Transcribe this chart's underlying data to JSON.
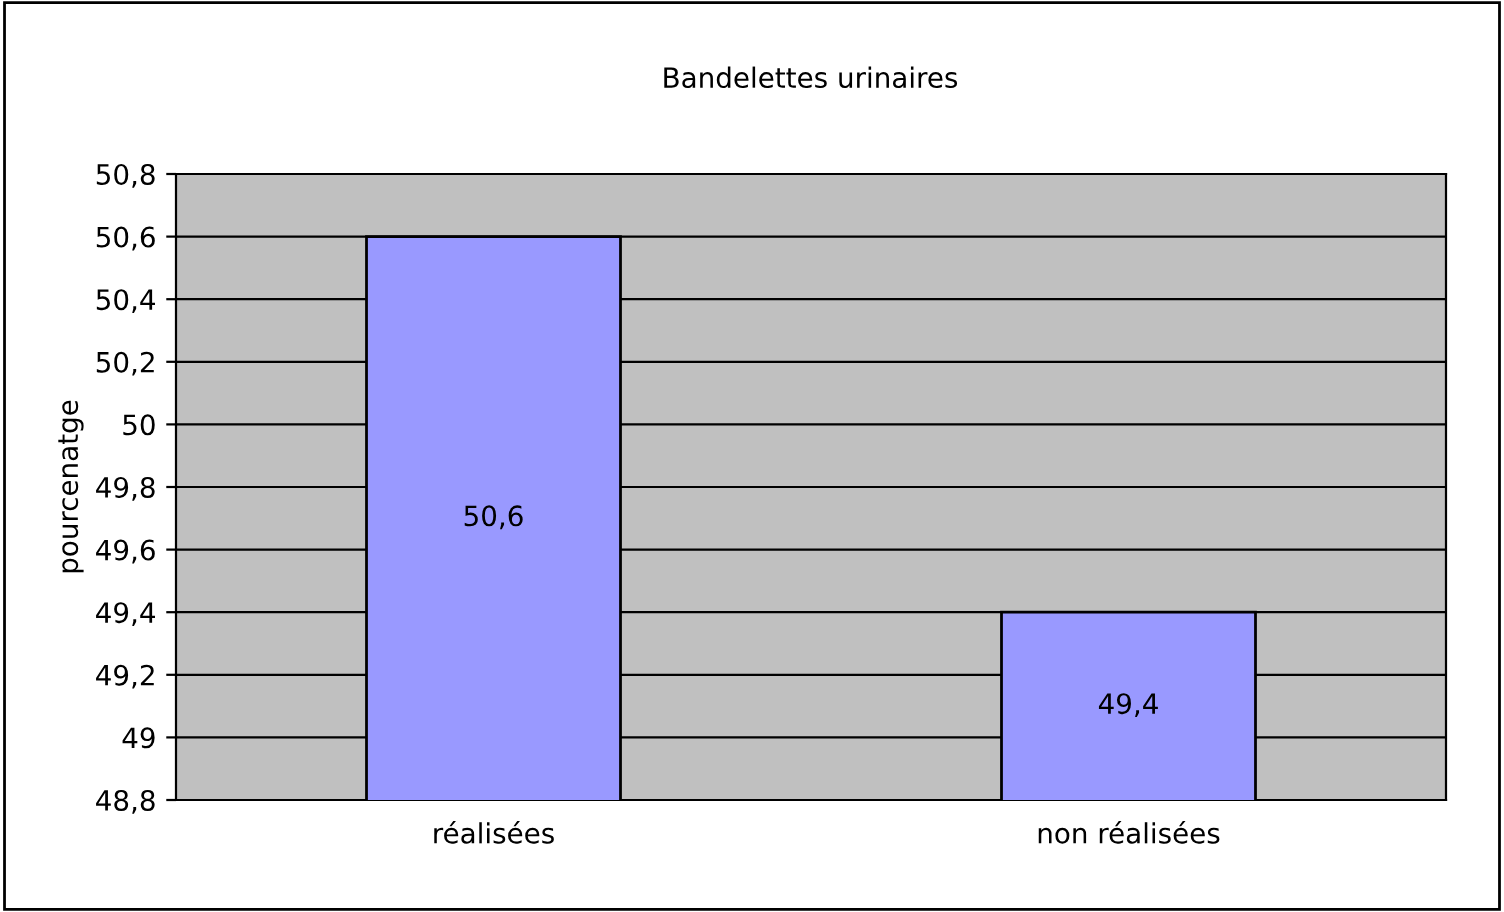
{
  "chart_data": {
    "type": "bar",
    "title": "Bandelettes urinaires",
    "ylabel": "pourcenatge",
    "categories": [
      "réalisées",
      "non réalisées"
    ],
    "values": [
      50.6,
      49.4
    ],
    "color": "#9999ff",
    "value_labels": [
      "50,6",
      "49,4"
    ],
    "ylim": [
      48.8,
      50.8
    ],
    "yticks": [
      {
        "value": 48.8,
        "label": "48,8"
      },
      {
        "value": 49,
        "label": "49"
      },
      {
        "value": 49.2,
        "label": "49,2"
      },
      {
        "value": 49.4,
        "label": "49,4"
      },
      {
        "value": 49.6,
        "label": "49,6"
      },
      {
        "value": 49.8,
        "label": "49,8"
      },
      {
        "value": 50,
        "label": "50"
      },
      {
        "value": 50.2,
        "label": "50,2"
      },
      {
        "value": 50.4,
        "label": "50,4"
      },
      {
        "value": 50.6,
        "label": "50,6"
      },
      {
        "value": 50.8,
        "label": "50,8"
      }
    ],
    "grid": "y",
    "legend": false
  }
}
